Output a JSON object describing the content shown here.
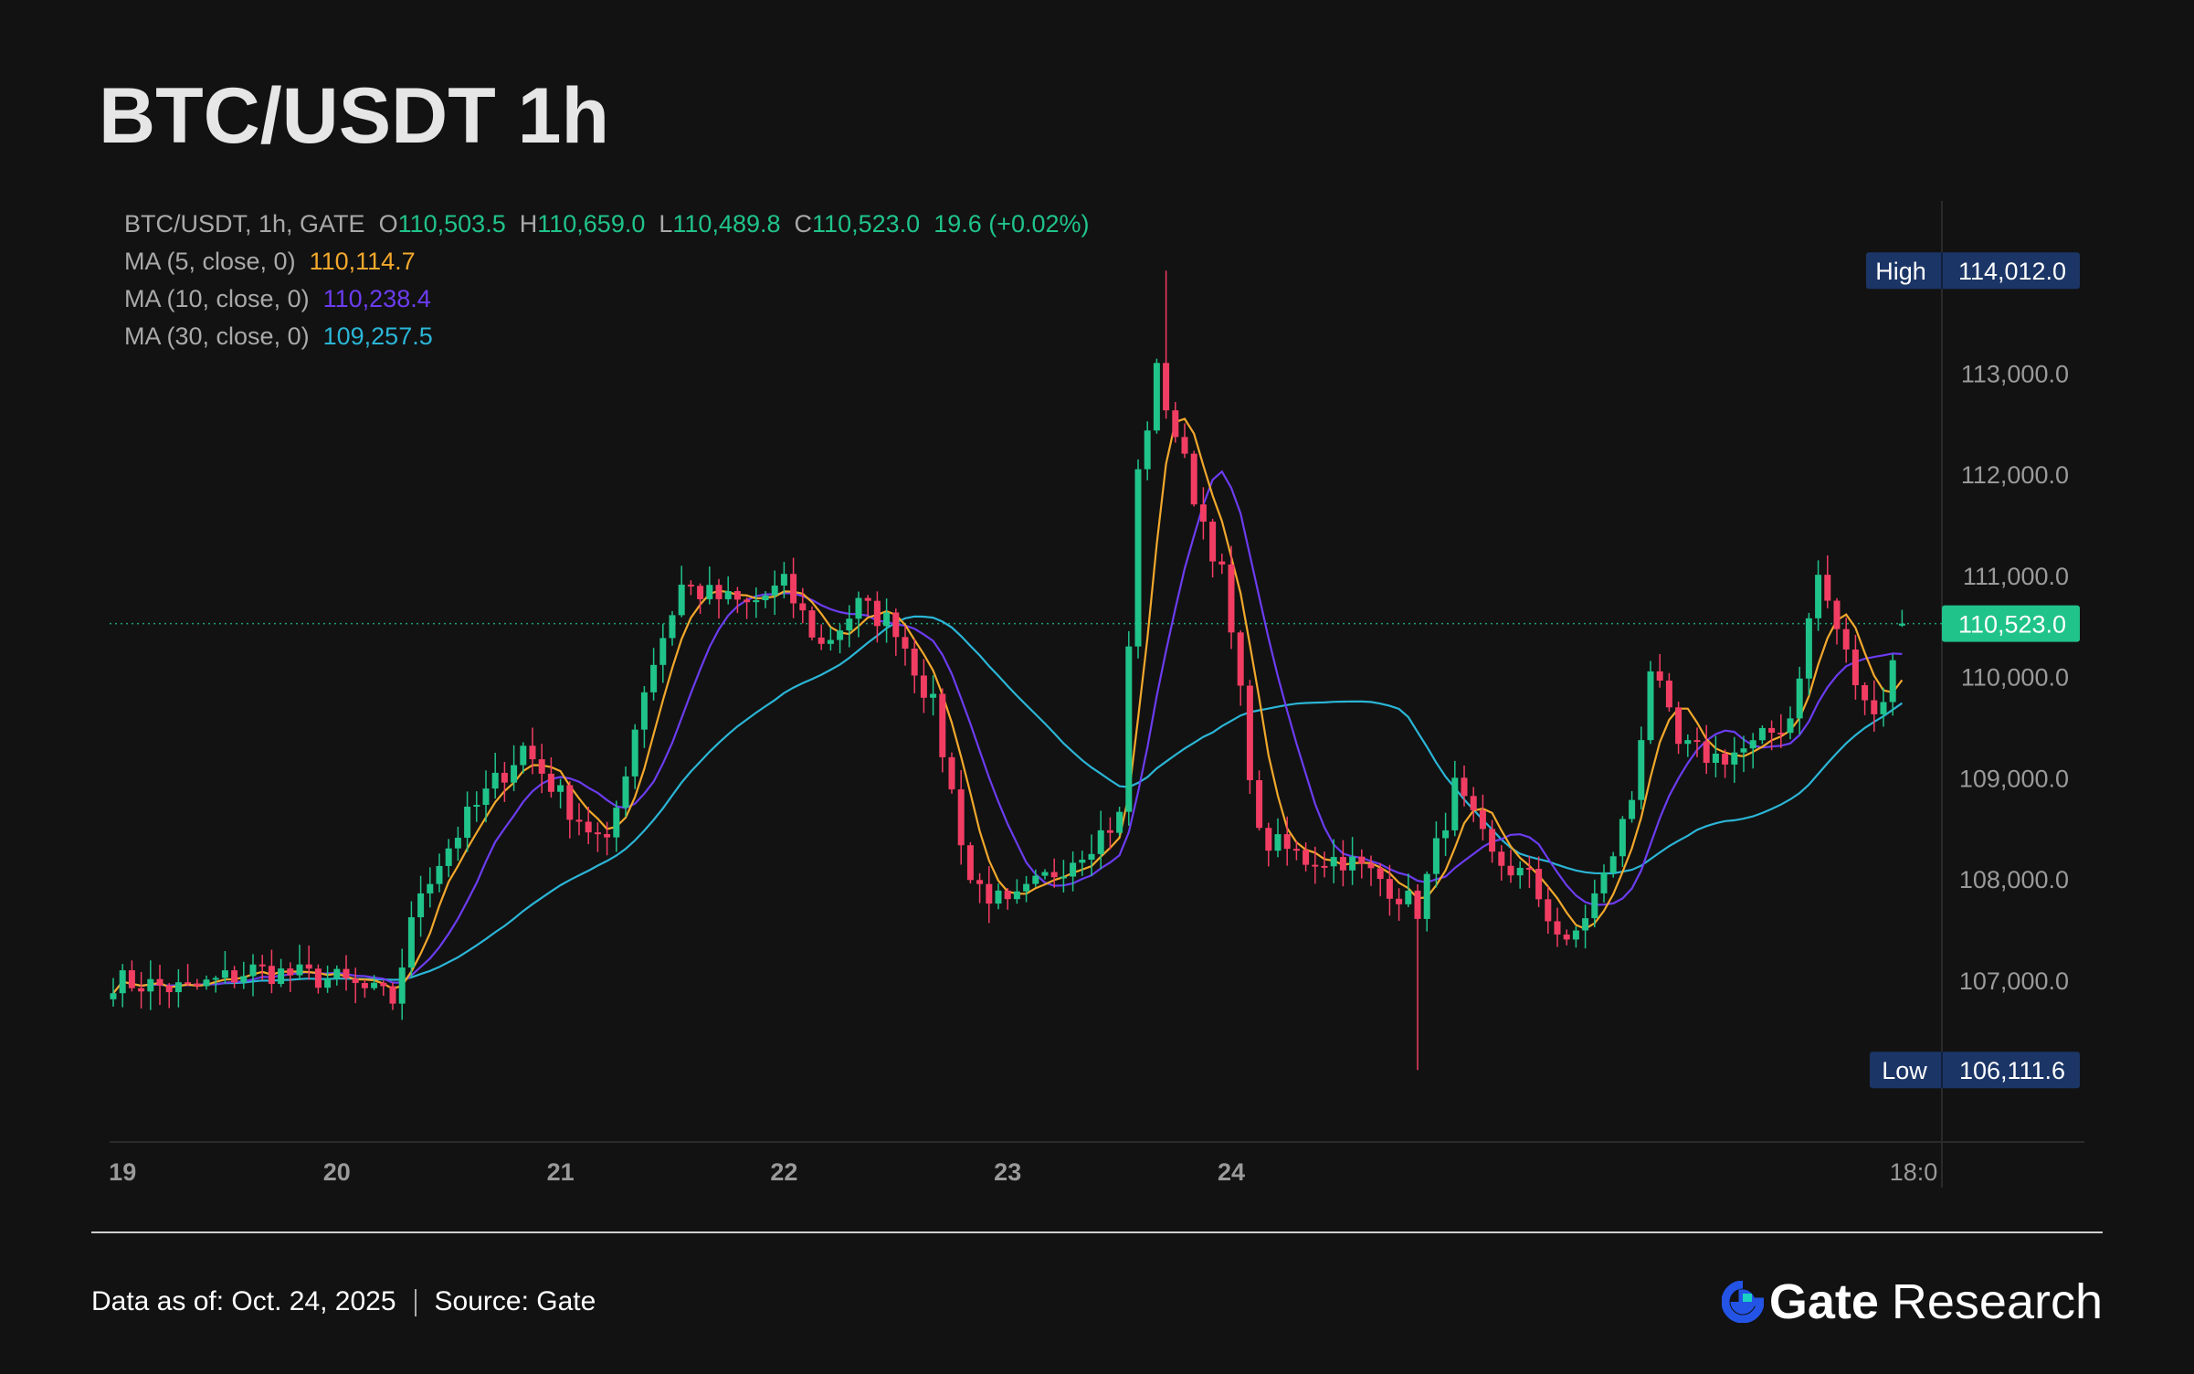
{
  "page": {
    "title": "BTC/USDT 1h",
    "footer_date": "Data as of: Oct. 24, 2025",
    "footer_source": "Source:  Gate",
    "brand_name": "Gate",
    "brand_suffix": "Research"
  },
  "legend": {
    "symbol": "BTC/USDT, 1h, GATE",
    "open_label": "O",
    "open": "110,503.5",
    "high_label": "H",
    "high": "110,659.0",
    "low_label": "L",
    "low": "110,489.8",
    "close_label": "C",
    "close": "110,523.0",
    "change": "19.6 (+0.02%)",
    "ma5_label": "MA (5, close, 0)",
    "ma5_value": "110,114.7",
    "ma10_label": "MA (10, close, 0)",
    "ma10_value": "110,238.4",
    "ma30_label": "MA (30, close, 0)",
    "ma30_value": "109,257.5"
  },
  "colors": {
    "up": "#20c38a",
    "down": "#f23d63",
    "ma5": "#f2a82c",
    "ma10": "#6c3cf0",
    "ma30": "#2bb5d6",
    "tag_bg": "#1b3566",
    "price_tag": "#20c38a"
  },
  "chart_data": {
    "type": "candlestick",
    "title": "BTC/USDT 1h",
    "interval": "1h",
    "y_ticks": [
      113000,
      112000,
      111000,
      110000,
      109000,
      108000,
      107000
    ],
    "y_tick_labels": [
      "113,000.0",
      "112,000.0",
      "111,000.0",
      "110,000.0",
      "109,000.0",
      "108,000.0",
      "107,000.0"
    ],
    "ylim": [
      105400,
      114700
    ],
    "x_ticks": [
      "19",
      "20",
      "21",
      "22",
      "23",
      "24",
      "18:0"
    ],
    "high_label": "High",
    "high_value": 114012.0,
    "high_text": "114,012.0",
    "low_label": "Low",
    "low_value": 106111.6,
    "low_text": "106,111.6",
    "last_price": 110523.0,
    "last_price_text": "110,523.0",
    "keypoints": [
      [
        0,
        107000
      ],
      [
        8,
        106900
      ],
      [
        15,
        107100
      ],
      [
        24,
        107000
      ],
      [
        30,
        106800
      ],
      [
        33,
        107900
      ],
      [
        38,
        108600
      ],
      [
        44,
        109300
      ],
      [
        49,
        108700
      ],
      [
        53,
        108300
      ],
      [
        57,
        109900
      ],
      [
        61,
        110900
      ],
      [
        64,
        110800
      ],
      [
        68,
        110700
      ],
      [
        72,
        110900
      ],
      [
        76,
        110300
      ],
      [
        80,
        110700
      ],
      [
        84,
        110500
      ],
      [
        88,
        109700
      ],
      [
        92,
        108000
      ],
      [
        96,
        107700
      ],
      [
        100,
        108000
      ],
      [
        104,
        108300
      ],
      [
        108,
        108600
      ],
      [
        110,
        112000
      ],
      [
        112,
        113000
      ],
      [
        116,
        111800
      ],
      [
        119,
        111000
      ],
      [
        121,
        109800
      ],
      [
        123,
        108400
      ],
      [
        128,
        108200
      ],
      [
        132,
        108200
      ],
      [
        136,
        108000
      ],
      [
        140,
        107700
      ],
      [
        144,
        108900
      ],
      [
        148,
        108200
      ],
      [
        152,
        108000
      ],
      [
        156,
        107300
      ],
      [
        160,
        108000
      ],
      [
        163,
        108800
      ],
      [
        165,
        110100
      ],
      [
        168,
        109300
      ],
      [
        172,
        109200
      ],
      [
        176,
        109300
      ],
      [
        180,
        109600
      ],
      [
        183,
        111000
      ],
      [
        186,
        110200
      ],
      [
        188,
        109700
      ],
      [
        190,
        109800
      ],
      [
        192,
        110500
      ]
    ],
    "series": [
      {
        "name": "MA (5, close, 0)",
        "last": 110114.7
      },
      {
        "name": "MA (10, close, 0)",
        "last": 110238.4
      },
      {
        "name": "MA (30, close, 0)",
        "last": 109257.5
      }
    ]
  }
}
